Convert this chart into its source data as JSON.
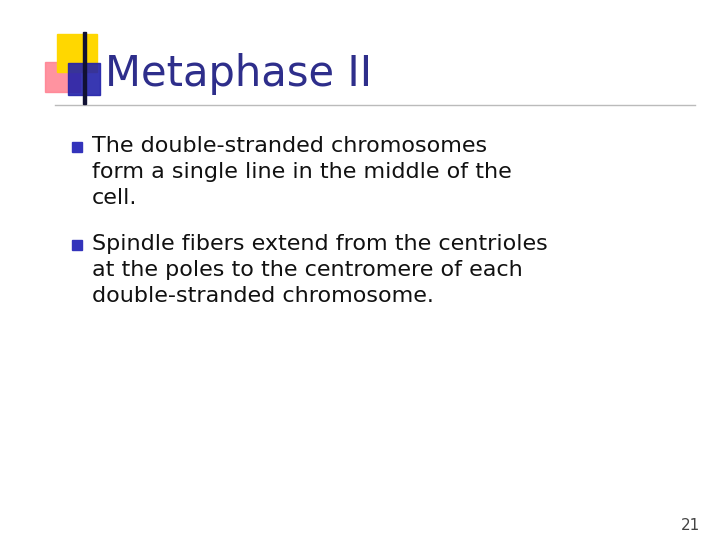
{
  "title": "Metaphase II",
  "title_color": "#2E2E8B",
  "background_color": "#FFFFFF",
  "bullet1_line1": "The double-stranded chromosomes",
  "bullet1_line2": "form a single line in the middle of the",
  "bullet1_line3": "cell.",
  "bullet2_line1": "Spindle fibers extend from the centrioles",
  "bullet2_line2": "at the poles to the centromere of each",
  "bullet2_line3": "double-stranded chromosome.",
  "bullet_color": "#111111",
  "bullet_square_color": "#3333BB",
  "page_number": "21",
  "page_number_color": "#444444",
  "decoration_yellow": "#FFD700",
  "decoration_pink": "#FF8090",
  "decoration_blue": "#2222AA",
  "line_color": "#BBBBBB",
  "title_font_size": 30,
  "body_font_size": 16,
  "page_num_font_size": 11,
  "figwidth": 7.2,
  "figheight": 5.4,
  "dpi": 100
}
